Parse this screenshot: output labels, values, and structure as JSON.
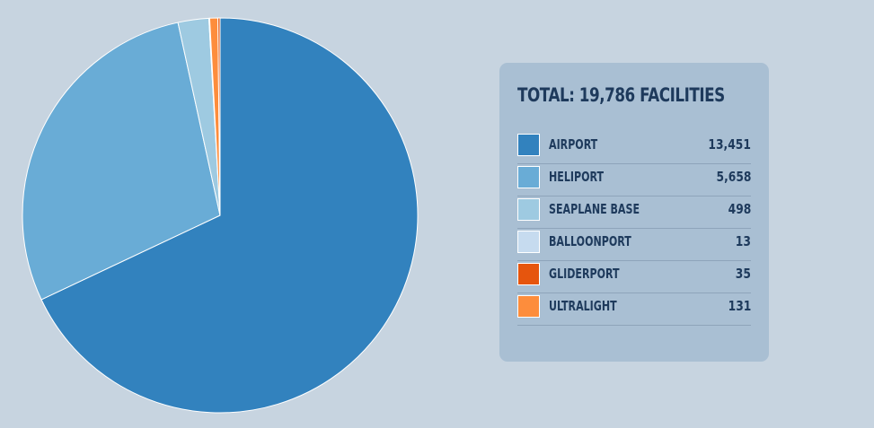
{
  "chart_data": {
    "type": "pie",
    "title": "TOTAL: 19,786 FACILITIES",
    "categories": [
      "AIRPORT",
      "HELIPORT",
      "SEAPLANE BASE",
      "BALLOONPORT",
      "GLIDERPORT",
      "ULTRALIGHT"
    ],
    "values": [
      13451,
      5658,
      498,
      13,
      35,
      131
    ],
    "value_labels": [
      "13,451",
      "5,658",
      "498",
      "13",
      "35",
      "131"
    ],
    "colors": [
      "#3282be",
      "#69acd6",
      "#9ecae1",
      "#c6dbef",
      "#e6550d",
      "#fd8d3c"
    ],
    "slice_order": [
      "AIRPORT",
      "HELIPORT",
      "SEAPLANE BASE",
      "BALLOONPORT",
      "ULTRALIGHT",
      "GLIDERPORT"
    ],
    "start": "12 o'clock",
    "direction": "clockwise",
    "legend_position": "right"
  },
  "colors": {
    "background": "#c7d4e0",
    "legend_panel": "#a9bfd3",
    "text": "#1e3a5c"
  }
}
